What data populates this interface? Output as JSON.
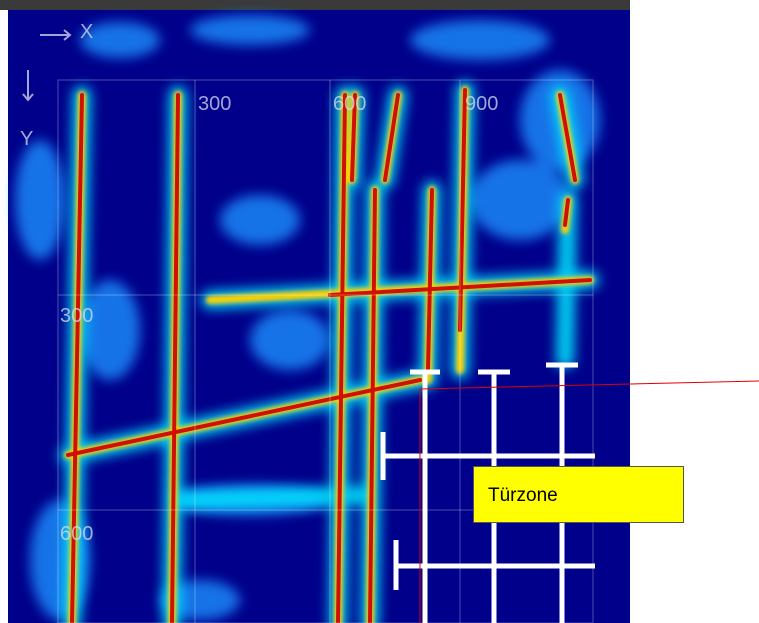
{
  "axis_labels": {
    "x": "X",
    "y": "Y"
  },
  "top_ticks": [
    "300",
    "600",
    "900"
  ],
  "left_ticks": [
    "300",
    "600"
  ],
  "annotation": "Türzone"
}
